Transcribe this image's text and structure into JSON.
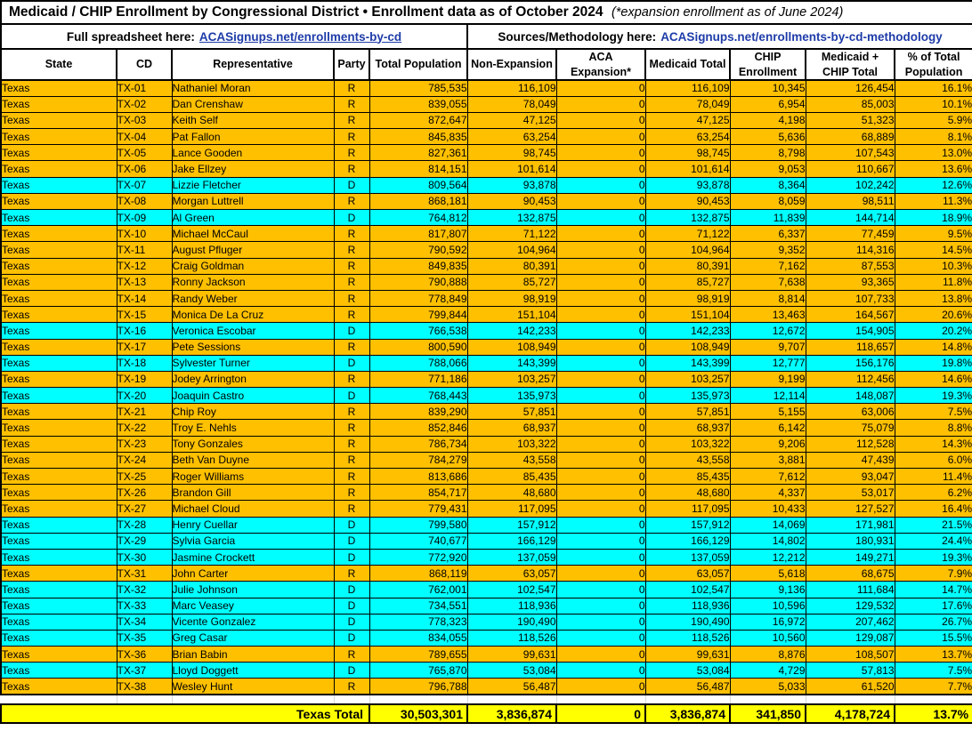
{
  "title": {
    "main": "Medicaid / CHIP Enrollment by Congressional District • Enrollment data as of October 2024",
    "note": "(*expansion enrollment as of June 2024)"
  },
  "links": {
    "spreadsheet_label": "Full spreadsheet here:",
    "spreadsheet_link": "ACASignups.net/enrollments-by-cd",
    "methodology_label": "Sources/Methodology here:",
    "methodology_link": "ACASignups.net/enrollments-by-cd-methodology"
  },
  "columns": [
    "State",
    "CD",
    "Representative",
    "Party",
    "Total Population",
    "Non-Expansion",
    "ACA Expansion*",
    "Medicaid Total",
    "CHIP Enrollment",
    "Medicaid + CHIP Total",
    "% of Total Population"
  ],
  "rows": [
    [
      "Texas",
      "TX-01",
      "Nathaniel Moran",
      "R",
      "785,535",
      "116,109",
      "0",
      "116,109",
      "10,345",
      "126,454",
      "16.1%"
    ],
    [
      "Texas",
      "TX-02",
      "Dan Crenshaw",
      "R",
      "839,055",
      "78,049",
      "0",
      "78,049",
      "6,954",
      "85,003",
      "10.1%"
    ],
    [
      "Texas",
      "TX-03",
      "Keith Self",
      "R",
      "872,647",
      "47,125",
      "0",
      "47,125",
      "4,198",
      "51,323",
      "5.9%"
    ],
    [
      "Texas",
      "TX-04",
      "Pat Fallon",
      "R",
      "845,835",
      "63,254",
      "0",
      "63,254",
      "5,636",
      "68,889",
      "8.1%"
    ],
    [
      "Texas",
      "TX-05",
      "Lance Gooden",
      "R",
      "827,361",
      "98,745",
      "0",
      "98,745",
      "8,798",
      "107,543",
      "13.0%"
    ],
    [
      "Texas",
      "TX-06",
      "Jake Ellzey",
      "R",
      "814,151",
      "101,614",
      "0",
      "101,614",
      "9,053",
      "110,667",
      "13.6%"
    ],
    [
      "Texas",
      "TX-07",
      "Lizzie Fletcher",
      "D",
      "809,564",
      "93,878",
      "0",
      "93,878",
      "8,364",
      "102,242",
      "12.6%"
    ],
    [
      "Texas",
      "TX-08",
      "Morgan Luttrell",
      "R",
      "868,181",
      "90,453",
      "0",
      "90,453",
      "8,059",
      "98,511",
      "11.3%"
    ],
    [
      "Texas",
      "TX-09",
      "Al Green",
      "D",
      "764,812",
      "132,875",
      "0",
      "132,875",
      "11,839",
      "144,714",
      "18.9%"
    ],
    [
      "Texas",
      "TX-10",
      "Michael McCaul",
      "R",
      "817,807",
      "71,122",
      "0",
      "71,122",
      "6,337",
      "77,459",
      "9.5%"
    ],
    [
      "Texas",
      "TX-11",
      "August Pfluger",
      "R",
      "790,592",
      "104,964",
      "0",
      "104,964",
      "9,352",
      "114,316",
      "14.5%"
    ],
    [
      "Texas",
      "TX-12",
      "Craig Goldman",
      "R",
      "849,835",
      "80,391",
      "0",
      "80,391",
      "7,162",
      "87,553",
      "10.3%"
    ],
    [
      "Texas",
      "TX-13",
      "Ronny Jackson",
      "R",
      "790,888",
      "85,727",
      "0",
      "85,727",
      "7,638",
      "93,365",
      "11.8%"
    ],
    [
      "Texas",
      "TX-14",
      "Randy Weber",
      "R",
      "778,849",
      "98,919",
      "0",
      "98,919",
      "8,814",
      "107,733",
      "13.8%"
    ],
    [
      "Texas",
      "TX-15",
      "Monica De La Cruz",
      "R",
      "799,844",
      "151,104",
      "0",
      "151,104",
      "13,463",
      "164,567",
      "20.6%"
    ],
    [
      "Texas",
      "TX-16",
      "Veronica Escobar",
      "D",
      "766,538",
      "142,233",
      "0",
      "142,233",
      "12,672",
      "154,905",
      "20.2%"
    ],
    [
      "Texas",
      "TX-17",
      "Pete Sessions",
      "R",
      "800,590",
      "108,949",
      "0",
      "108,949",
      "9,707",
      "118,657",
      "14.8%"
    ],
    [
      "Texas",
      "TX-18",
      "Sylvester Turner",
      "D",
      "788,066",
      "143,399",
      "0",
      "143,399",
      "12,777",
      "156,176",
      "19.8%"
    ],
    [
      "Texas",
      "TX-19",
      "Jodey Arrington",
      "R",
      "771,186",
      "103,257",
      "0",
      "103,257",
      "9,199",
      "112,456",
      "14.6%"
    ],
    [
      "Texas",
      "TX-20",
      "Joaquin Castro",
      "D",
      "768,443",
      "135,973",
      "0",
      "135,973",
      "12,114",
      "148,087",
      "19.3%"
    ],
    [
      "Texas",
      "TX-21",
      "Chip Roy",
      "R",
      "839,290",
      "57,851",
      "0",
      "57,851",
      "5,155",
      "63,006",
      "7.5%"
    ],
    [
      "Texas",
      "TX-22",
      "Troy E. Nehls",
      "R",
      "852,846",
      "68,937",
      "0",
      "68,937",
      "6,142",
      "75,079",
      "8.8%"
    ],
    [
      "Texas",
      "TX-23",
      "Tony Gonzales",
      "R",
      "786,734",
      "103,322",
      "0",
      "103,322",
      "9,206",
      "112,528",
      "14.3%"
    ],
    [
      "Texas",
      "TX-24",
      "Beth Van Duyne",
      "R",
      "784,279",
      "43,558",
      "0",
      "43,558",
      "3,881",
      "47,439",
      "6.0%"
    ],
    [
      "Texas",
      "TX-25",
      "Roger Williams",
      "R",
      "813,686",
      "85,435",
      "0",
      "85,435",
      "7,612",
      "93,047",
      "11.4%"
    ],
    [
      "Texas",
      "TX-26",
      "Brandon Gill",
      "R",
      "854,717",
      "48,680",
      "0",
      "48,680",
      "4,337",
      "53,017",
      "6.2%"
    ],
    [
      "Texas",
      "TX-27",
      "Michael Cloud",
      "R",
      "779,431",
      "117,095",
      "0",
      "117,095",
      "10,433",
      "127,527",
      "16.4%"
    ],
    [
      "Texas",
      "TX-28",
      "Henry Cuellar",
      "D",
      "799,580",
      "157,912",
      "0",
      "157,912",
      "14,069",
      "171,981",
      "21.5%"
    ],
    [
      "Texas",
      "TX-29",
      "Sylvia Garcia",
      "D",
      "740,677",
      "166,129",
      "0",
      "166,129",
      "14,802",
      "180,931",
      "24.4%"
    ],
    [
      "Texas",
      "TX-30",
      "Jasmine Crockett",
      "D",
      "772,920",
      "137,059",
      "0",
      "137,059",
      "12,212",
      "149,271",
      "19.3%"
    ],
    [
      "Texas",
      "TX-31",
      "John Carter",
      "R",
      "868,119",
      "63,057",
      "0",
      "63,057",
      "5,618",
      "68,675",
      "7.9%"
    ],
    [
      "Texas",
      "TX-32",
      "Julie Johnson",
      "D",
      "762,001",
      "102,547",
      "0",
      "102,547",
      "9,136",
      "111,684",
      "14.7%"
    ],
    [
      "Texas",
      "TX-33",
      "Marc Veasey",
      "D",
      "734,551",
      "118,936",
      "0",
      "118,936",
      "10,596",
      "129,532",
      "17.6%"
    ],
    [
      "Texas",
      "TX-34",
      "Vicente Gonzalez",
      "D",
      "778,323",
      "190,490",
      "0",
      "190,490",
      "16,972",
      "207,462",
      "26.7%"
    ],
    [
      "Texas",
      "TX-35",
      "Greg Casar",
      "D",
      "834,055",
      "118,526",
      "0",
      "118,526",
      "10,560",
      "129,087",
      "15.5%"
    ],
    [
      "Texas",
      "TX-36",
      "Brian Babin",
      "R",
      "789,655",
      "99,631",
      "0",
      "99,631",
      "8,876",
      "108,507",
      "13.7%"
    ],
    [
      "Texas",
      "TX-37",
      "Lloyd Doggett",
      "D",
      "765,870",
      "53,084",
      "0",
      "53,084",
      "4,729",
      "57,813",
      "7.5%"
    ],
    [
      "Texas",
      "TX-38",
      "Wesley Hunt",
      "R",
      "796,788",
      "56,487",
      "0",
      "56,487",
      "5,033",
      "61,520",
      "7.7%"
    ]
  ],
  "totals": {
    "label": "Texas Total",
    "total_population": "30,503,301",
    "non_expansion": "3,836,874",
    "aca_expansion": "0",
    "medicaid_total": "3,836,874",
    "chip_enrollment": "341,850",
    "medicaid_chip_total": "4,178,724",
    "pct_of_total_population": "13.7%"
  },
  "colors": {
    "republican_row": "#FFC000",
    "democrat_row": "#00FFFF",
    "totals_row": "#FFFF00",
    "link_blue": "#1E3CA8"
  }
}
